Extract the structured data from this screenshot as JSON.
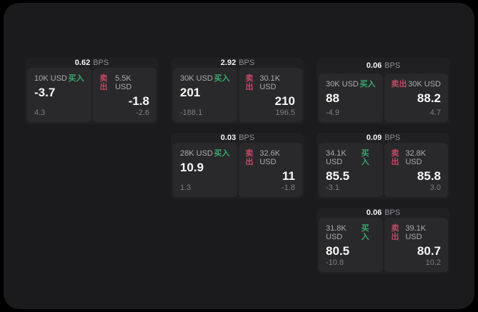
{
  "labels": {
    "bps_unit": "BPS",
    "buy": "买入",
    "sell": "卖出"
  },
  "colors": {
    "surface": "#1b1b1d",
    "card": "#202022",
    "panel": "#29292b",
    "buy_green": "#3aa66d",
    "sell_red": "#c44766"
  },
  "cards": [
    {
      "bps": "0.62",
      "buy": {
        "amount": "10K USD",
        "price": "-3.7",
        "delta": "4.3"
      },
      "sell": {
        "amount": "5.5K USD",
        "price": "-1.8",
        "delta": "-2.6"
      }
    },
    {
      "bps": "2.92",
      "buy": {
        "amount": "30K USD",
        "price": "201",
        "delta": "-188.1"
      },
      "sell": {
        "amount": "30.1K USD",
        "price": "210",
        "delta": "196.5"
      }
    },
    {
      "bps": "0.06",
      "buy": {
        "amount": "30K USD",
        "price": "88",
        "delta": "-4.9"
      },
      "sell": {
        "amount": "30K USD",
        "price": "88.2",
        "delta": "4.7"
      }
    },
    {
      "bps": "0.03",
      "buy": {
        "amount": "28K USD",
        "price": "10.9",
        "delta": "1.3"
      },
      "sell": {
        "amount": "32.6K USD",
        "price": "11",
        "delta": "-1.8"
      }
    },
    {
      "bps": "0.09",
      "buy": {
        "amount": "34.1K USD",
        "price": "85.5",
        "delta": "-3.1"
      },
      "sell": {
        "amount": "32.8K USD",
        "price": "85.8",
        "delta": "3.0"
      }
    },
    {
      "bps": "0.06",
      "buy": {
        "amount": "31.8K USD",
        "price": "80.5",
        "delta": "-10.8"
      },
      "sell": {
        "amount": "39.1K USD",
        "price": "80.7",
        "delta": "10.2"
      }
    }
  ]
}
